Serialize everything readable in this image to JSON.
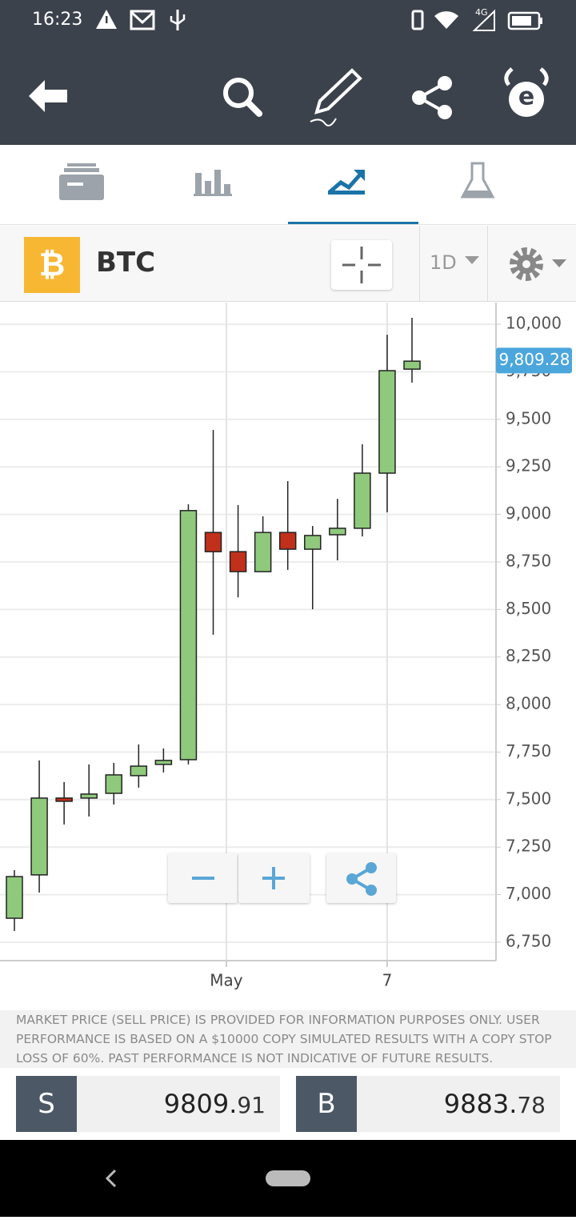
{
  "status_bar": {
    "time": "16:23",
    "network": "4G"
  },
  "header": {
    "logo": "₿",
    "symbol": "BTC",
    "timeframe": "1D"
  },
  "chart_data": {
    "type": "candlestick",
    "categories": [
      null,
      null,
      null,
      null,
      null,
      null,
      null,
      null,
      null,
      null,
      null,
      null,
      null,
      null,
      null,
      null,
      null
    ],
    "open": [
      6876,
      7104,
      7508,
      7508,
      7533,
      7626,
      7685,
      7710,
      8905,
      8804,
      8699,
      8905,
      8817,
      8893,
      8927,
      9217,
      9764
    ],
    "high": [
      7129,
      7706,
      7592,
      7685,
      7693,
      7790,
      7769,
      9053,
      9444,
      9049,
      8990,
      9175,
      8939,
      9082,
      9369,
      9945,
      10034
    ],
    "low": [
      6809,
      7011,
      7369,
      7411,
      7474,
      7563,
      7643,
      7685,
      8367,
      8564,
      8699,
      8708,
      8501,
      8758,
      8884,
      9011,
      9693
    ],
    "close": [
      7095,
      7508,
      7491,
      7529,
      7630,
      7676,
      7706,
      9020,
      8804,
      8699,
      8905,
      8817,
      8889,
      8927,
      9217,
      9756,
      9806
    ],
    "up_color": "#8fc97c",
    "down_color": "#c1301b",
    "ylim": [
      6653,
      10114
    ],
    "yticks": [
      {
        "value": 6750,
        "label": "6,750"
      },
      {
        "value": 7000,
        "label": "7,000"
      },
      {
        "value": 7250,
        "label": "7,250"
      },
      {
        "value": 7500,
        "label": "7,500"
      },
      {
        "value": 7750,
        "label": "7,750"
      },
      {
        "value": 8000,
        "label": "8,000"
      },
      {
        "value": 8250,
        "label": "8,250"
      },
      {
        "value": 8500,
        "label": "8,500"
      },
      {
        "value": 8750,
        "label": "8,750"
      },
      {
        "value": 9000,
        "label": "9,000"
      },
      {
        "value": 9250,
        "label": "9,250"
      },
      {
        "value": 9500,
        "label": "9,500"
      },
      {
        "value": 9750,
        "label": "9,750"
      },
      {
        "value": 10000,
        "label": "10,000"
      }
    ],
    "xlim": [
      -0.58,
      19.38
    ],
    "xticks": [
      {
        "value": 8.53,
        "label": "May"
      },
      {
        "value": 15,
        "label": "7"
      }
    ],
    "last_price": {
      "value": 9809.28,
      "label": "9,809.28"
    },
    "grid": true
  },
  "disclaimer": "MARKET PRICE (SELL PRICE) IS PROVIDED FOR INFORMATION PURPOSES ONLY. USER PERFORMANCE IS BASED ON A $10000 COPY SIMULATED RESULTS WITH A COPY STOP LOSS OF 60%. PAST PERFORMANCE IS NOT INDICATIVE OF FUTURE RESULTS.",
  "trade": {
    "sell": {
      "label": "S",
      "price": "9809.",
      "price_small": "91"
    },
    "buy": {
      "label": "B",
      "price": "9883.",
      "price_small": "78"
    }
  }
}
